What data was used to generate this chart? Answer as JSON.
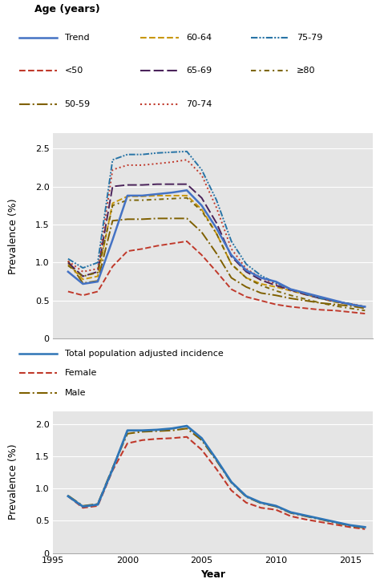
{
  "years": [
    1996,
    1997,
    1998,
    1999,
    2000,
    2001,
    2002,
    2003,
    2004,
    2005,
    2006,
    2007,
    2008,
    2009,
    2010,
    2011,
    2012,
    2013,
    2014,
    2015,
    2016
  ],
  "trend": [
    0.88,
    0.72,
    0.75,
    1.3,
    1.88,
    1.88,
    1.9,
    1.92,
    1.95,
    1.75,
    1.45,
    1.1,
    0.9,
    0.8,
    0.75,
    0.65,
    0.6,
    0.55,
    0.5,
    0.45,
    0.42
  ],
  "lt50": [
    0.62,
    0.57,
    0.62,
    0.95,
    1.15,
    1.18,
    1.22,
    1.25,
    1.28,
    1.1,
    0.88,
    0.65,
    0.55,
    0.5,
    0.45,
    0.42,
    0.4,
    0.38,
    0.37,
    0.35,
    0.33
  ],
  "age5059": [
    1.02,
    0.73,
    0.76,
    1.55,
    1.57,
    1.57,
    1.58,
    1.58,
    1.58,
    1.4,
    1.12,
    0.8,
    0.68,
    0.6,
    0.57,
    0.53,
    0.5,
    0.47,
    0.45,
    0.43,
    0.4
  ],
  "age6064": [
    0.98,
    0.78,
    0.82,
    1.78,
    1.87,
    1.87,
    1.88,
    1.88,
    1.88,
    1.7,
    1.38,
    0.98,
    0.8,
    0.72,
    0.68,
    0.63,
    0.58,
    0.53,
    0.48,
    0.45,
    0.42
  ],
  "age6569": [
    1.0,
    0.82,
    0.88,
    2.0,
    2.02,
    2.02,
    2.03,
    2.03,
    2.03,
    1.85,
    1.52,
    1.08,
    0.88,
    0.77,
    0.7,
    0.64,
    0.58,
    0.53,
    0.49,
    0.45,
    0.42
  ],
  "age7074": [
    1.02,
    0.88,
    0.92,
    2.22,
    2.28,
    2.28,
    2.3,
    2.32,
    2.35,
    2.15,
    1.72,
    1.18,
    0.92,
    0.8,
    0.72,
    0.65,
    0.59,
    0.53,
    0.49,
    0.46,
    0.42
  ],
  "age7579": [
    1.05,
    0.93,
    1.0,
    2.35,
    2.42,
    2.42,
    2.44,
    2.45,
    2.46,
    2.22,
    1.82,
    1.28,
    0.98,
    0.83,
    0.73,
    0.65,
    0.59,
    0.53,
    0.49,
    0.46,
    0.42
  ],
  "ge80": [
    0.96,
    0.82,
    0.87,
    1.75,
    1.82,
    1.82,
    1.83,
    1.84,
    1.85,
    1.68,
    1.38,
    0.98,
    0.8,
    0.7,
    0.63,
    0.57,
    0.52,
    0.47,
    0.43,
    0.4,
    0.37
  ],
  "total": [
    0.88,
    0.72,
    0.75,
    1.3,
    1.9,
    1.9,
    1.91,
    1.93,
    1.97,
    1.78,
    1.45,
    1.1,
    0.88,
    0.78,
    0.73,
    0.63,
    0.58,
    0.53,
    0.48,
    0.43,
    0.4
  ],
  "female": [
    0.88,
    0.7,
    0.73,
    1.28,
    1.7,
    1.75,
    1.77,
    1.78,
    1.8,
    1.6,
    1.3,
    0.97,
    0.78,
    0.7,
    0.67,
    0.57,
    0.52,
    0.48,
    0.44,
    0.4,
    0.37
  ],
  "male": [
    0.89,
    0.73,
    0.76,
    1.32,
    1.85,
    1.88,
    1.89,
    1.9,
    1.93,
    1.75,
    1.43,
    1.09,
    0.87,
    0.77,
    0.72,
    0.62,
    0.57,
    0.52,
    0.47,
    0.42,
    0.39
  ],
  "bg_color": "#e5e5e5",
  "trend_color": "#4472c4",
  "lt50_color": "#c0392b",
  "age5059_color": "#7f6000",
  "age6064_color": "#c8960c",
  "age6569_color": "#4a235a",
  "age7074_color": "#c0392b",
  "age7579_color": "#2874a6",
  "ge80_color": "#7d6608",
  "total_color": "#2e75b6",
  "female_color": "#c0392b",
  "male_color": "#7f6000"
}
